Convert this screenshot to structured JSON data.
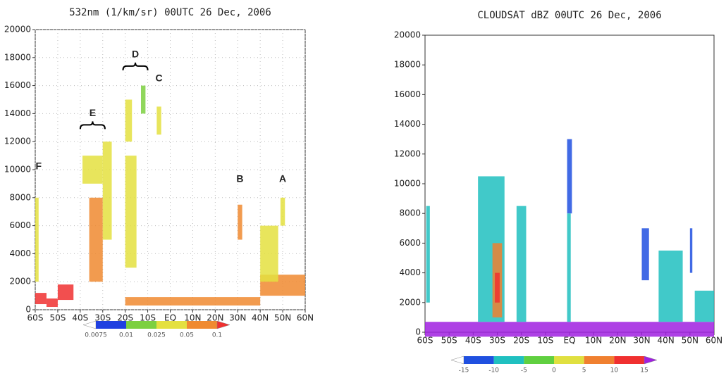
{
  "chart_data": [
    {
      "type": "curtain",
      "title": "532nm (1/km/sr) 00UTC 26 Dec, 2006",
      "xlim": [
        -60,
        60
      ],
      "xticks": [
        {
          "value": -60,
          "label": "60S"
        },
        {
          "value": -50,
          "label": "50S"
        },
        {
          "value": -40,
          "label": "40S"
        },
        {
          "value": -30,
          "label": "30S"
        },
        {
          "value": -20,
          "label": "20S"
        },
        {
          "value": -10,
          "label": "10S"
        },
        {
          "value": 0,
          "label": "EQ"
        },
        {
          "value": 10,
          "label": "10N"
        },
        {
          "value": 20,
          "label": "20N"
        },
        {
          "value": 30,
          "label": "30N"
        },
        {
          "value": 40,
          "label": "40N"
        },
        {
          "value": 50,
          "label": "50N"
        },
        {
          "value": 60,
          "label": "60N"
        }
      ],
      "ylim": [
        0,
        20000
      ],
      "yticks": [
        0,
        2000,
        4000,
        6000,
        8000,
        10000,
        12000,
        14000,
        16000,
        18000,
        20000
      ],
      "grid": true,
      "levels": [
        0.0075,
        0.01,
        0.025,
        0.05,
        0.1
      ],
      "colors": [
        "#ffffff",
        "#2040e0",
        "#7cd040",
        "#e4e040",
        "#f08a30",
        "#f03030"
      ],
      "features": [
        {
          "x": [
            -60,
            -58.5
          ],
          "y": [
            2000,
            8000
          ],
          "value": 0.03
        },
        {
          "x": [
            -60,
            -55
          ],
          "y": [
            400,
            1200
          ],
          "value": 0.2
        },
        {
          "x": [
            -55,
            -50
          ],
          "y": [
            200,
            800
          ],
          "value": 0.2
        },
        {
          "x": [
            -50,
            -43
          ],
          "y": [
            700,
            1800
          ],
          "value": 0.2
        },
        {
          "x": [
            -20,
            40
          ],
          "y": [
            300,
            900
          ],
          "value": 0.07
        },
        {
          "x": [
            40,
            60
          ],
          "y": [
            1000,
            2500
          ],
          "value": 0.07
        },
        {
          "x": [
            -39,
            -30
          ],
          "y": [
            9000,
            11000
          ],
          "value": 0.03
        },
        {
          "x": [
            -36,
            -30
          ],
          "y": [
            2000,
            8000
          ],
          "value": 0.07
        },
        {
          "x": [
            -30,
            -26
          ],
          "y": [
            5000,
            12000
          ],
          "value": 0.03
        },
        {
          "x": [
            -20,
            -17
          ],
          "y": [
            12000,
            15000
          ],
          "value": 0.03
        },
        {
          "x": [
            -13,
            -11
          ],
          "y": [
            14000,
            16000
          ],
          "value": 0.02
        },
        {
          "x": [
            -20,
            -15
          ],
          "y": [
            3000,
            11000
          ],
          "value": 0.03
        },
        {
          "x": [
            -6,
            -4
          ],
          "y": [
            12500,
            14500
          ],
          "value": 0.03
        },
        {
          "x": [
            30,
            32
          ],
          "y": [
            5000,
            7500
          ],
          "value": 0.07
        },
        {
          "x": [
            49,
            51
          ],
          "y": [
            6000,
            8000
          ],
          "value": 0.03
        },
        {
          "x": [
            40,
            48
          ],
          "y": [
            2000,
            6000
          ],
          "value": 0.03
        }
      ],
      "annotations": [
        {
          "text": "F",
          "x": -58.5,
          "y": 10200
        },
        {
          "text": "E",
          "x": -34.5,
          "y": 14000,
          "brace": [
            -40,
            -29
          ]
        },
        {
          "text": "D",
          "x": -15.5,
          "y": 18200,
          "brace": [
            -21,
            -10
          ]
        },
        {
          "text": "C",
          "x": -5,
          "y": 16500
        },
        {
          "text": "B",
          "x": 31,
          "y": 9300
        },
        {
          "text": "A",
          "x": 50,
          "y": 9300
        }
      ]
    },
    {
      "type": "curtain",
      "title": "CLOUDSAT dBZ 00UTC 26 Dec, 2006",
      "xlim": [
        -60,
        60
      ],
      "xticks": [
        {
          "value": -60,
          "label": "60S"
        },
        {
          "value": -50,
          "label": "50S"
        },
        {
          "value": -40,
          "label": "40S"
        },
        {
          "value": -30,
          "label": "30S"
        },
        {
          "value": -20,
          "label": "20S"
        },
        {
          "value": -10,
          "label": "10S"
        },
        {
          "value": 0,
          "label": "EQ"
        },
        {
          "value": 10,
          "label": "10N"
        },
        {
          "value": 20,
          "label": "20N"
        },
        {
          "value": 30,
          "label": "30N"
        },
        {
          "value": 40,
          "label": "40N"
        },
        {
          "value": 50,
          "label": "50N"
        },
        {
          "value": 60,
          "label": "60N"
        }
      ],
      "ylim": [
        0,
        20000
      ],
      "yticks": [
        0,
        2000,
        4000,
        6000,
        8000,
        10000,
        12000,
        14000,
        16000,
        18000,
        20000
      ],
      "grid": false,
      "levels": [
        -15,
        -10,
        -5,
        0,
        5,
        10,
        15
      ],
      "colors": [
        "#ffffff",
        "#2050e0",
        "#20c0c0",
        "#60d040",
        "#e0e040",
        "#f08030",
        "#f03030",
        "#a020e0"
      ],
      "features": [
        {
          "x": [
            -60,
            60
          ],
          "y": [
            -300,
            700
          ],
          "value": 20
        },
        {
          "x": [
            -59.5,
            -58
          ],
          "y": [
            2000,
            8500
          ],
          "value": -7
        },
        {
          "x": [
            -38,
            -27
          ],
          "y": [
            700,
            10500
          ],
          "value": -7
        },
        {
          "x": [
            -32,
            -28
          ],
          "y": [
            1000,
            6000
          ],
          "value": 8
        },
        {
          "x": [
            -31,
            -29
          ],
          "y": [
            2000,
            4000
          ],
          "value": 12
        },
        {
          "x": [
            -22,
            -18
          ],
          "y": [
            700,
            8500
          ],
          "value": -7
        },
        {
          "x": [
            -1,
            1
          ],
          "y": [
            8000,
            13000
          ],
          "value": -12
        },
        {
          "x": [
            -1,
            0.5
          ],
          "y": [
            700,
            8000
          ],
          "value": -7
        },
        {
          "x": [
            30,
            33
          ],
          "y": [
            3500,
            7000
          ],
          "value": -12
        },
        {
          "x": [
            37,
            47
          ],
          "y": [
            700,
            5500
          ],
          "value": -7
        },
        {
          "x": [
            50,
            51
          ],
          "y": [
            4000,
            7000
          ],
          "value": -12
        },
        {
          "x": [
            52,
            60
          ],
          "y": [
            700,
            2800
          ],
          "value": -7
        }
      ]
    }
  ]
}
